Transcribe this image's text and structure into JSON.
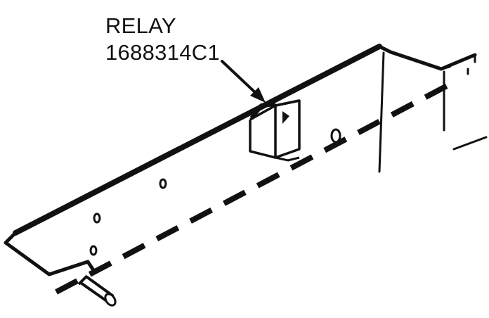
{
  "callout": {
    "name": "RELAY",
    "part_number": "1688314C1"
  }
}
